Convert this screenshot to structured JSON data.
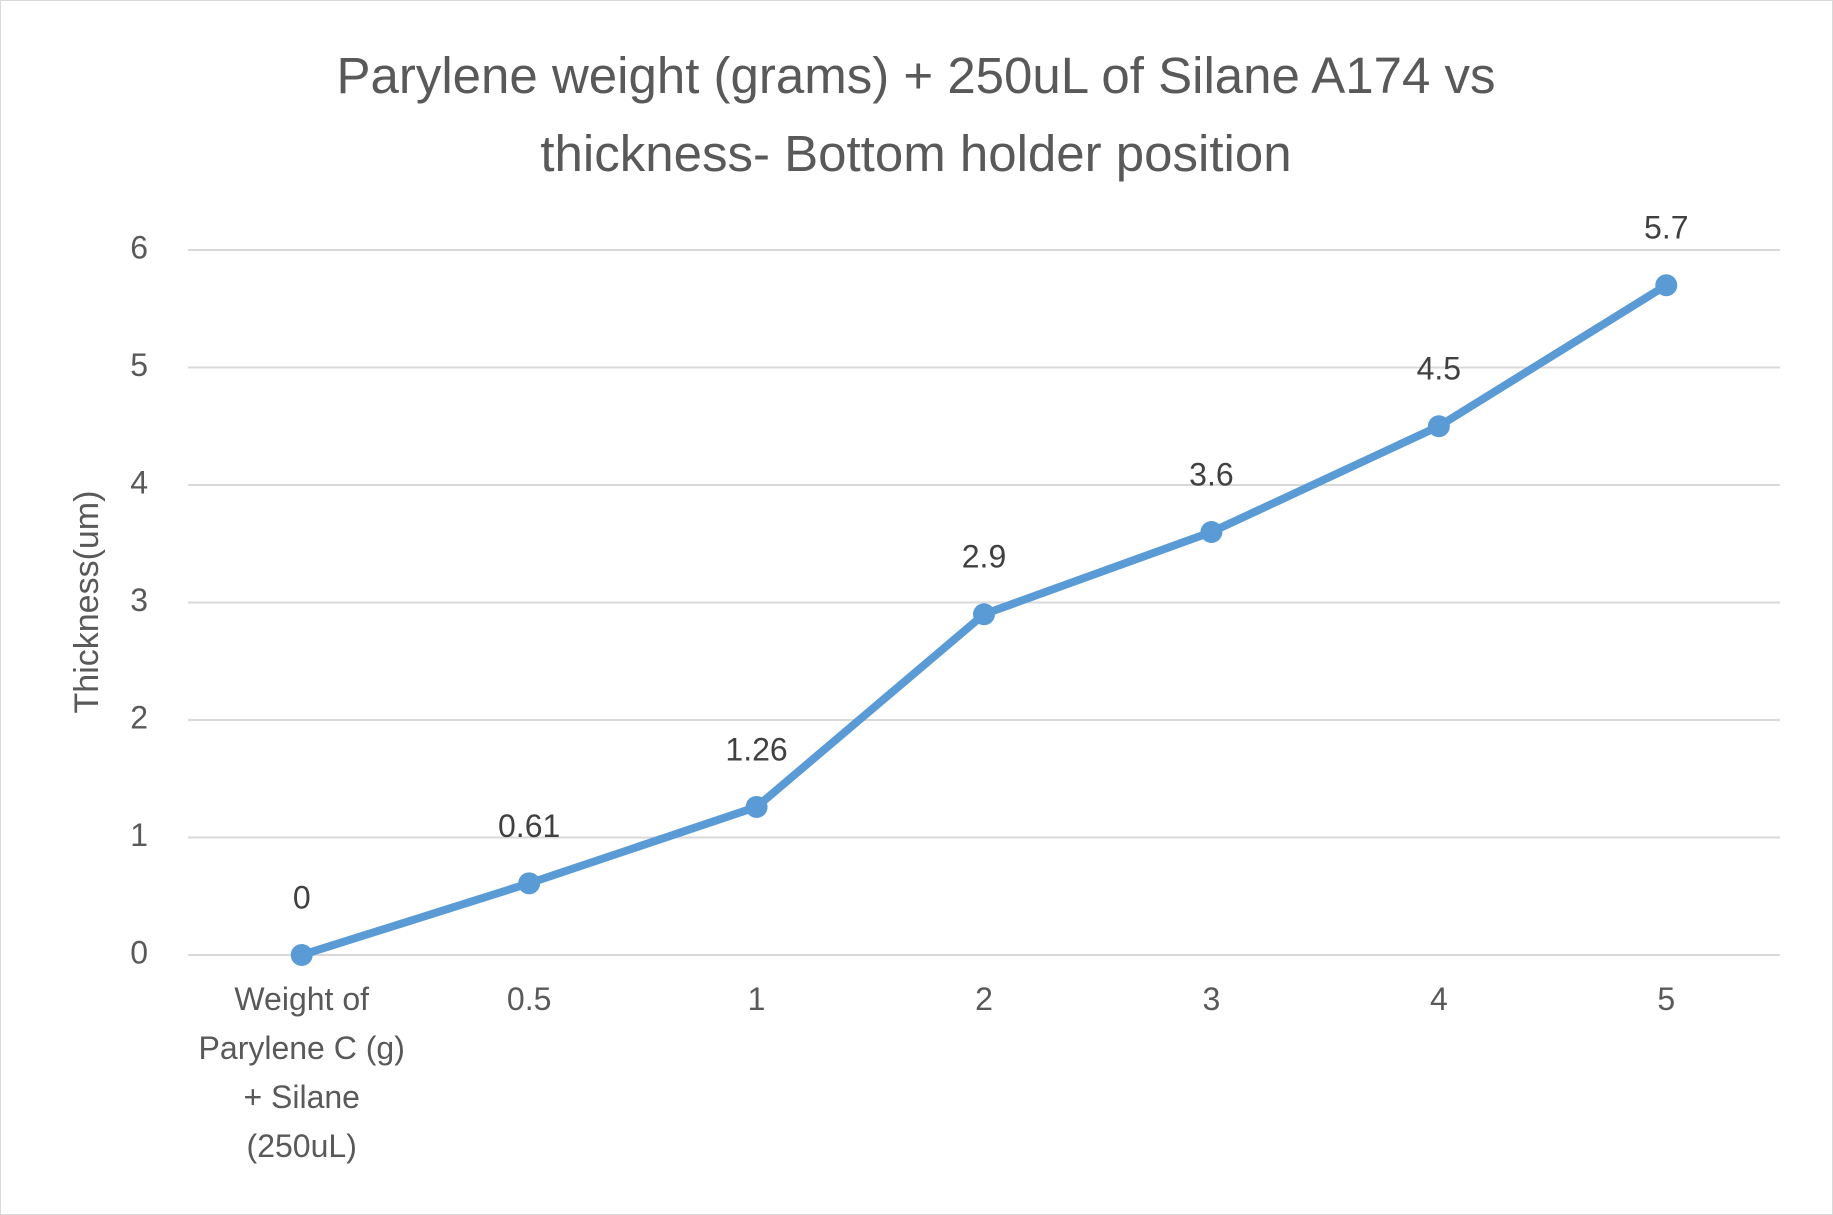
{
  "chart_data": {
    "type": "line",
    "title": "Parylene weight (grams) + 250uL of Silane A174 vs thickness- Bottom holder position",
    "y_label": "Thickness(um)",
    "categories": [
      "Weight of Parylene C (g) + Silane (250uL)",
      "0.5",
      "1",
      "2",
      "3",
      "4",
      "5"
    ],
    "values": [
      0,
      0.61,
      1.26,
      2.9,
      3.6,
      4.5,
      5.7
    ],
    "color": "#5b9bd5",
    "ylim": [
      0,
      6
    ],
    "yticks": [
      0,
      1,
      2,
      3,
      4,
      5,
      6
    ],
    "grid": true,
    "data_labels": true
  }
}
